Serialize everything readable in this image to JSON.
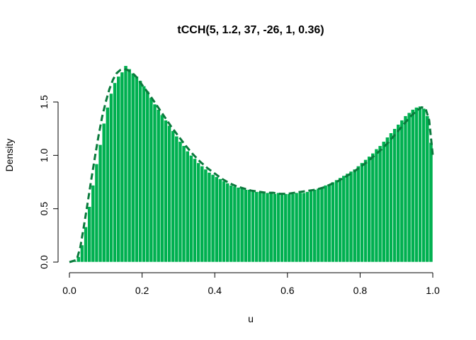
{
  "chart_data": {
    "type": "bar",
    "title": "tCCH(5, 1.2, 37, -26, 1, 0.36)",
    "xlabel": "u",
    "ylabel": "Density",
    "xlim": [
      0.0,
      1.0
    ],
    "ylim": [
      0.0,
      1.85
    ],
    "x_ticks": [
      "0.0",
      "0.2",
      "0.4",
      "0.6",
      "0.8",
      "1.0"
    ],
    "y_ticks": [
      "0.0",
      "0.5",
      "1.0",
      "1.5"
    ],
    "bin_width": 0.01,
    "bins_start": [
      0.0,
      0.01,
      0.02,
      0.03,
      0.04,
      0.05,
      0.06,
      0.07,
      0.08,
      0.09,
      0.1,
      0.11,
      0.12,
      0.13,
      0.14,
      0.15,
      0.16,
      0.17,
      0.18,
      0.19,
      0.2,
      0.21,
      0.22,
      0.23,
      0.24,
      0.25,
      0.26,
      0.27,
      0.28,
      0.29,
      0.3,
      0.31,
      0.32,
      0.33,
      0.34,
      0.35,
      0.36,
      0.37,
      0.38,
      0.39,
      0.4,
      0.41,
      0.42,
      0.43,
      0.44,
      0.45,
      0.46,
      0.47,
      0.48,
      0.49,
      0.5,
      0.51,
      0.52,
      0.53,
      0.54,
      0.55,
      0.56,
      0.57,
      0.58,
      0.59,
      0.6,
      0.61,
      0.62,
      0.63,
      0.64,
      0.65,
      0.66,
      0.67,
      0.68,
      0.69,
      0.7,
      0.71,
      0.72,
      0.73,
      0.74,
      0.75,
      0.76,
      0.77,
      0.78,
      0.79,
      0.8,
      0.81,
      0.82,
      0.83,
      0.84,
      0.85,
      0.86,
      0.87,
      0.88,
      0.89,
      0.9,
      0.91,
      0.92,
      0.93,
      0.94,
      0.95,
      0.96,
      0.97,
      0.98,
      0.99
    ],
    "values": [
      0.0,
      0.01,
      0.05,
      0.16,
      0.33,
      0.52,
      0.72,
      0.92,
      1.1,
      1.3,
      1.45,
      1.58,
      1.68,
      1.74,
      1.78,
      1.84,
      1.81,
      1.77,
      1.74,
      1.7,
      1.65,
      1.6,
      1.54,
      1.48,
      1.43,
      1.38,
      1.33,
      1.28,
      1.23,
      1.18,
      1.13,
      1.09,
      1.04,
      1.0,
      0.97,
      0.93,
      0.9,
      0.87,
      0.84,
      0.82,
      0.8,
      0.78,
      0.76,
      0.74,
      0.72,
      0.71,
      0.7,
      0.69,
      0.68,
      0.68,
      0.67,
      0.66,
      0.66,
      0.65,
      0.65,
      0.65,
      0.64,
      0.65,
      0.64,
      0.64,
      0.64,
      0.64,
      0.65,
      0.65,
      0.65,
      0.66,
      0.67,
      0.68,
      0.69,
      0.7,
      0.72,
      0.73,
      0.75,
      0.77,
      0.79,
      0.81,
      0.83,
      0.85,
      0.87,
      0.9,
      0.93,
      0.96,
      0.99,
      1.02,
      1.06,
      1.09,
      1.13,
      1.17,
      1.21,
      1.25,
      1.29,
      1.33,
      1.37,
      1.4,
      1.43,
      1.45,
      1.46,
      1.44,
      1.37,
      1.12
    ],
    "series": [
      {
        "kind": "bars",
        "color": "#00b050"
      },
      {
        "kind": "density-line",
        "style": "dashed",
        "color": "#0a7a3c",
        "x": [
          0.0,
          0.02,
          0.03,
          0.04,
          0.05,
          0.06,
          0.07,
          0.08,
          0.09,
          0.1,
          0.11,
          0.12,
          0.13,
          0.14,
          0.15,
          0.16,
          0.17,
          0.18,
          0.19,
          0.2,
          0.22,
          0.24,
          0.26,
          0.28,
          0.3,
          0.32,
          0.34,
          0.36,
          0.38,
          0.4,
          0.42,
          0.44,
          0.46,
          0.48,
          0.5,
          0.52,
          0.54,
          0.56,
          0.58,
          0.6,
          0.62,
          0.64,
          0.66,
          0.68,
          0.7,
          0.72,
          0.74,
          0.76,
          0.78,
          0.8,
          0.82,
          0.84,
          0.86,
          0.88,
          0.9,
          0.92,
          0.94,
          0.95,
          0.96,
          0.97,
          0.98,
          0.99,
          1.0
        ],
        "y": [
          0.0,
          0.02,
          0.14,
          0.34,
          0.55,
          0.77,
          0.98,
          1.18,
          1.36,
          1.5,
          1.62,
          1.71,
          1.77,
          1.8,
          1.81,
          1.8,
          1.78,
          1.75,
          1.71,
          1.66,
          1.57,
          1.47,
          1.37,
          1.27,
          1.18,
          1.09,
          1.01,
          0.94,
          0.88,
          0.83,
          0.78,
          0.74,
          0.71,
          0.69,
          0.67,
          0.66,
          0.65,
          0.65,
          0.64,
          0.64,
          0.65,
          0.66,
          0.67,
          0.68,
          0.7,
          0.73,
          0.76,
          0.8,
          0.84,
          0.89,
          0.94,
          1.0,
          1.06,
          1.13,
          1.21,
          1.29,
          1.37,
          1.4,
          1.43,
          1.45,
          1.44,
          1.33,
          1.0
        ]
      }
    ]
  }
}
